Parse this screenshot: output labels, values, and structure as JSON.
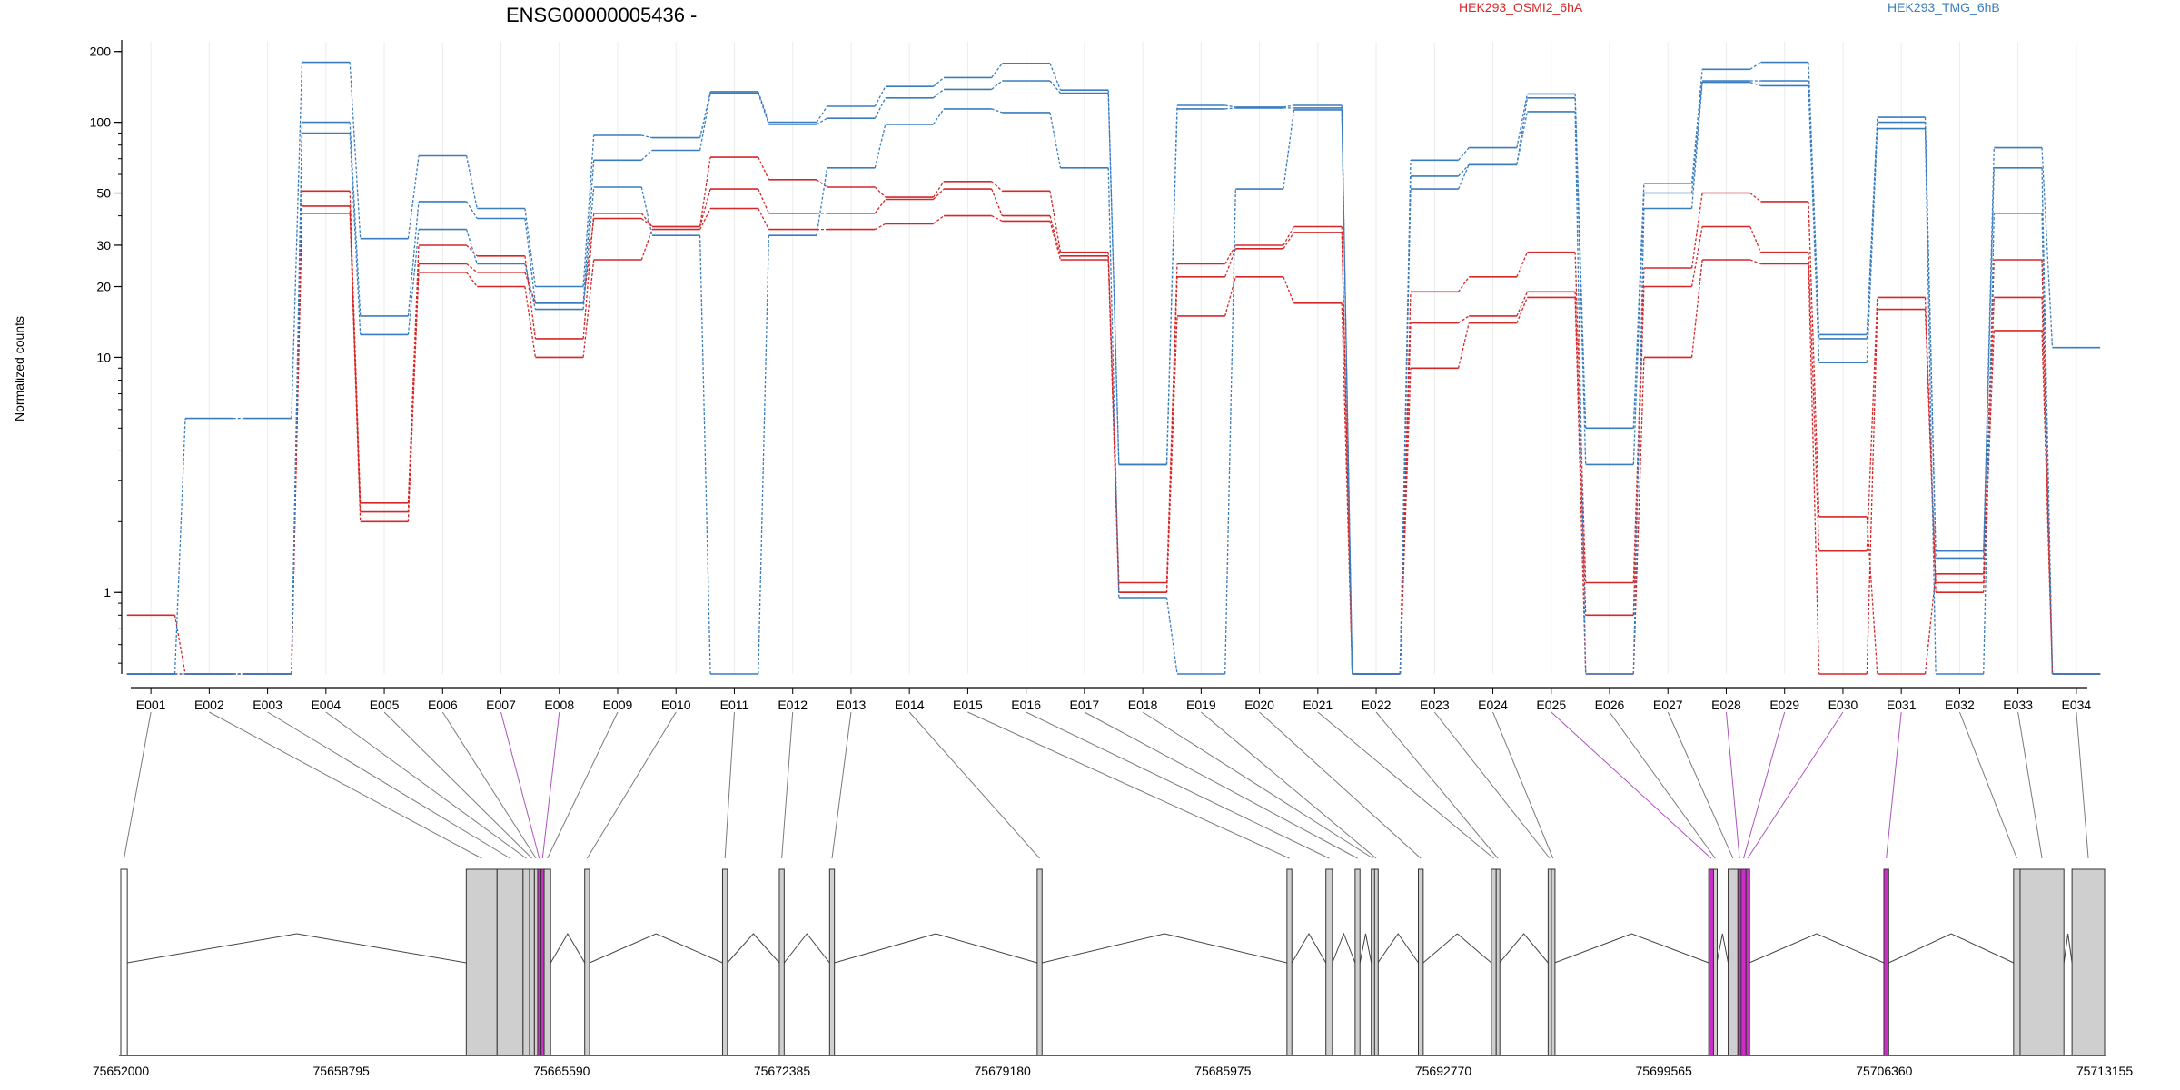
{
  "chart_data": {
    "type": "line",
    "title": "ENSG00000005436 -",
    "ylabel": "Normalized counts",
    "yscale": "log",
    "ylim": [
      0.45,
      220
    ],
    "yticks": [
      1,
      10,
      20,
      30,
      50,
      100,
      200
    ],
    "categories": [
      "E001",
      "E002",
      "E003",
      "E004",
      "E005",
      "E006",
      "E007",
      "E008",
      "E009",
      "E010",
      "E011",
      "E012",
      "E013",
      "E014",
      "E015",
      "E016",
      "E017",
      "E018",
      "E019",
      "E020",
      "E021",
      "E022",
      "E023",
      "E024",
      "E025",
      "E026",
      "E027",
      "E028",
      "E029",
      "E030",
      "E031",
      "E032",
      "E033",
      "E034"
    ],
    "conditions": [
      {
        "name": "HEK293_OSMI2_6hA",
        "color": "#d62728"
      },
      {
        "name": "HEK293_TMG_6hB",
        "color": "#3a7dbf"
      }
    ],
    "series": [
      {
        "condition": "HEK293_OSMI2_6hA",
        "values": [
          0.8,
          0.45,
          0.45,
          51,
          2.4,
          30,
          27,
          12,
          41,
          36,
          71,
          57,
          53,
          48,
          56,
          51,
          28,
          1.1,
          25,
          30,
          36,
          0.45,
          19,
          22,
          28,
          1.1,
          24,
          50,
          46,
          2.1,
          0.45,
          1.2,
          26,
          0.45
        ]
      },
      {
        "condition": "HEK293_OSMI2_6hA",
        "values": [
          0.45,
          0.45,
          0.45,
          44,
          2.2,
          25,
          23,
          17,
          39,
          36,
          52,
          41,
          41,
          47,
          52,
          40,
          27,
          1.0,
          22,
          29,
          34,
          0.45,
          14,
          15,
          19,
          0.8,
          20,
          36,
          28,
          1.5,
          18,
          1.1,
          18,
          0.45
        ]
      },
      {
        "condition": "HEK293_OSMI2_6hA",
        "values": [
          0.45,
          0.45,
          0.45,
          41,
          2.0,
          23,
          20,
          10,
          26,
          35,
          43,
          35,
          35,
          37,
          40,
          38,
          26,
          1.0,
          15,
          22,
          17,
          0.45,
          9,
          14,
          18,
          0.45,
          10,
          26,
          25,
          0.45,
          16,
          1.0,
          13,
          0.45
        ]
      },
      {
        "condition": "HEK293_TMG_6hB",
        "values": [
          0.45,
          5.5,
          5.5,
          180,
          32,
          72,
          43,
          20,
          88,
          86,
          135,
          100,
          117,
          142,
          155,
          178,
          137,
          3.5,
          118,
          116,
          118,
          0.45,
          69,
          78,
          132,
          5.0,
          55,
          168,
          180,
          12.5,
          105,
          1.5,
          78,
          11
        ]
      },
      {
        "condition": "HEK293_TMG_6hB",
        "values": [
          0.45,
          0.45,
          0.45,
          100,
          15,
          46,
          39,
          17,
          69,
          76,
          133,
          98,
          104,
          127,
          138,
          150,
          133,
          3.5,
          114,
          115,
          115,
          0.45,
          59,
          66,
          127,
          3.5,
          50,
          150,
          150,
          12,
          100,
          1.4,
          64,
          0.45
        ]
      },
      {
        "condition": "HEK293_TMG_6hB",
        "values": [
          0.45,
          0.45,
          0.45,
          90,
          12.5,
          35,
          25,
          16,
          53,
          33,
          0.45,
          33,
          64,
          98,
          114,
          110,
          64,
          0.95,
          0.45,
          52,
          113,
          0.45,
          52,
          66,
          111,
          0.45,
          43,
          148,
          143,
          9.5,
          94,
          0.45,
          41,
          0.45
        ]
      }
    ],
    "coordinate_ticks": [
      "75652000",
      "75658795",
      "75665590",
      "75672385",
      "75679180",
      "75685975",
      "75692770",
      "75699565",
      "75706360",
      "75713155"
    ],
    "gene_start": 75652000,
    "gene_end": 75713155,
    "exons": [
      {
        "id": "E001",
        "start": 75652000,
        "end": 75652200,
        "kind": "plain"
      },
      {
        "id": "E002",
        "start": 75662650,
        "end": 75663600,
        "kind": "gray"
      },
      {
        "id": "E003",
        "start": 75663600,
        "end": 75664400,
        "kind": "gray"
      },
      {
        "id": "E004",
        "start": 75664400,
        "end": 75664600,
        "kind": "gray"
      },
      {
        "id": "E005",
        "start": 75664600,
        "end": 75664750,
        "kind": "gray"
      },
      {
        "id": "E006",
        "start": 75664750,
        "end": 75664850,
        "kind": "gray"
      },
      {
        "id": "E007",
        "start": 75664850,
        "end": 75664950,
        "kind": "magenta"
      },
      {
        "id": "E008",
        "start": 75664950,
        "end": 75665050,
        "kind": "magenta"
      },
      {
        "id": "E009",
        "start": 75665050,
        "end": 75665250,
        "kind": "gray"
      },
      {
        "id": "E010",
        "start": 75666300,
        "end": 75666450,
        "kind": "gray"
      },
      {
        "id": "E011",
        "start": 75670550,
        "end": 75670700,
        "kind": "gray"
      },
      {
        "id": "E012",
        "start": 75672300,
        "end": 75672450,
        "kind": "gray"
      },
      {
        "id": "E013",
        "start": 75673850,
        "end": 75674000,
        "kind": "gray"
      },
      {
        "id": "E014",
        "start": 75680250,
        "end": 75680400,
        "kind": "gray"
      },
      {
        "id": "E015",
        "start": 75687950,
        "end": 75688100,
        "kind": "gray"
      },
      {
        "id": "E016",
        "start": 75689150,
        "end": 75689350,
        "kind": "gray"
      },
      {
        "id": "E017",
        "start": 75690050,
        "end": 75690200,
        "kind": "gray"
      },
      {
        "id": "E018",
        "start": 75690550,
        "end": 75690650,
        "kind": "gray"
      },
      {
        "id": "E019",
        "start": 75690650,
        "end": 75690750,
        "kind": "gray"
      },
      {
        "id": "E020",
        "start": 75692000,
        "end": 75692150,
        "kind": "gray"
      },
      {
        "id": "E021",
        "start": 75694250,
        "end": 75694400,
        "kind": "gray"
      },
      {
        "id": "E022",
        "start": 75694400,
        "end": 75694500,
        "kind": "gray"
      },
      {
        "id": "E023",
        "start": 75696000,
        "end": 75696100,
        "kind": "gray"
      },
      {
        "id": "E024",
        "start": 75696100,
        "end": 75696200,
        "kind": "gray"
      },
      {
        "id": "E025",
        "start": 75700950,
        "end": 75701100,
        "kind": "magenta"
      },
      {
        "id": "E026",
        "start": 75701100,
        "end": 75701200,
        "kind": "gray"
      },
      {
        "id": "E027",
        "start": 75701550,
        "end": 75701850,
        "kind": "gray"
      },
      {
        "id": "E028",
        "start": 75701850,
        "end": 75701950,
        "kind": "magenta"
      },
      {
        "id": "E029",
        "start": 75701950,
        "end": 75702100,
        "kind": "magenta"
      },
      {
        "id": "E030",
        "start": 75702100,
        "end": 75702200,
        "kind": "magenta"
      },
      {
        "id": "E031",
        "start": 75706350,
        "end": 75706500,
        "kind": "magenta"
      },
      {
        "id": "E032",
        "start": 75710350,
        "end": 75710550,
        "kind": "gray"
      },
      {
        "id": "E033",
        "start": 75710550,
        "end": 75711900,
        "kind": "gray"
      },
      {
        "id": "E034",
        "start": 75712150,
        "end": 75713155,
        "kind": "gray"
      }
    ]
  }
}
